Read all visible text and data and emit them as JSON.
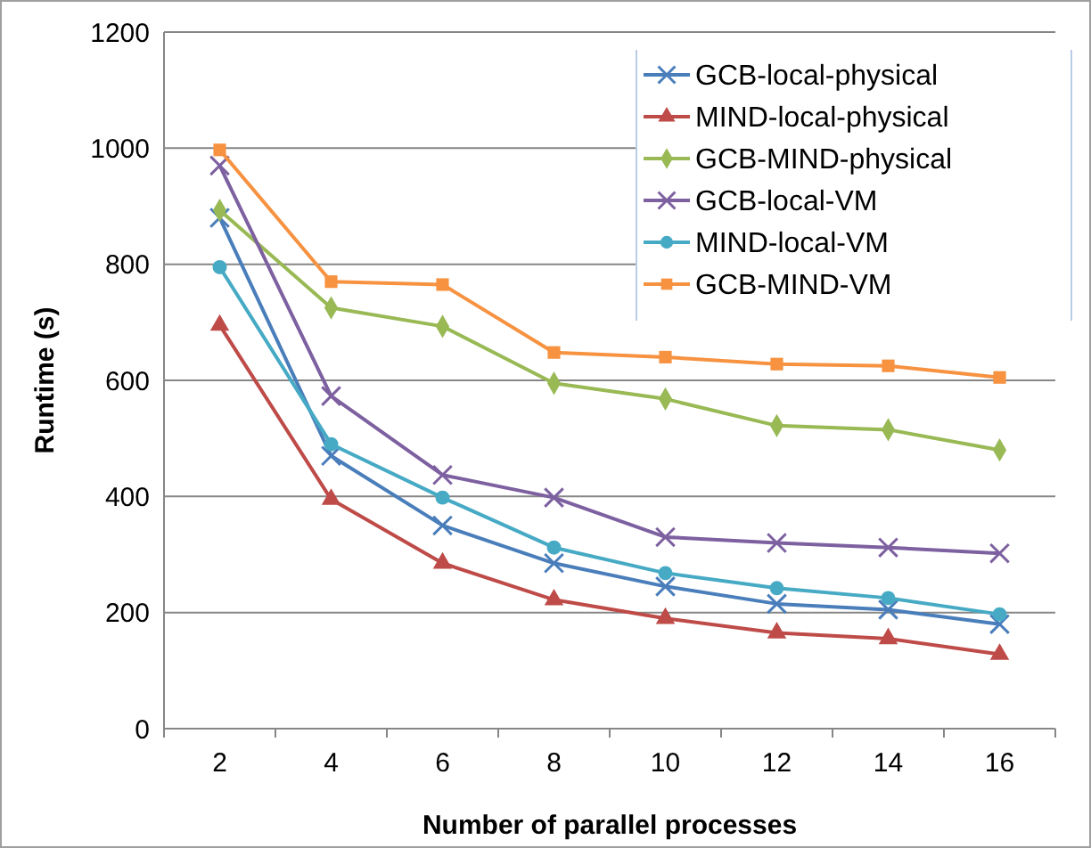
{
  "chart_data": {
    "type": "line",
    "xlabel": "Number of parallel processes",
    "ylabel": "Runtime (s)",
    "categories": [
      "2",
      "4",
      "6",
      "8",
      "10",
      "12",
      "14",
      "16"
    ],
    "ylim": [
      0,
      1200
    ],
    "yticks": [
      0,
      200,
      400,
      600,
      800,
      1000,
      1200
    ],
    "grid": "y",
    "legend": "top right",
    "series": [
      {
        "name": "GCB-local-physical",
        "color": "#4a7ebb",
        "marker": "cross",
        "values": [
          880,
          470,
          350,
          285,
          245,
          215,
          205,
          180
        ]
      },
      {
        "name": "MIND-local-physical",
        "color": "#be4b48",
        "marker": "triangle",
        "values": [
          695,
          395,
          285,
          222,
          190,
          165,
          155,
          128
        ]
      },
      {
        "name": "GCB-MIND-physical",
        "color": "#98b954",
        "marker": "diamond",
        "values": [
          893,
          725,
          693,
          595,
          568,
          522,
          515,
          480
        ]
      },
      {
        "name": "GCB-local-VM",
        "color": "#7d60a0",
        "marker": "cross",
        "values": [
          970,
          573,
          437,
          398,
          330,
          320,
          312,
          302
        ]
      },
      {
        "name": "MIND-local-VM",
        "color": "#46aac5",
        "marker": "circle",
        "values": [
          795,
          490,
          398,
          312,
          268,
          242,
          225,
          197
        ]
      },
      {
        "name": "GCB-MIND-VM",
        "color": "#f69240",
        "marker": "square",
        "values": [
          997,
          770,
          765,
          648,
          640,
          628,
          625,
          605
        ]
      }
    ]
  }
}
